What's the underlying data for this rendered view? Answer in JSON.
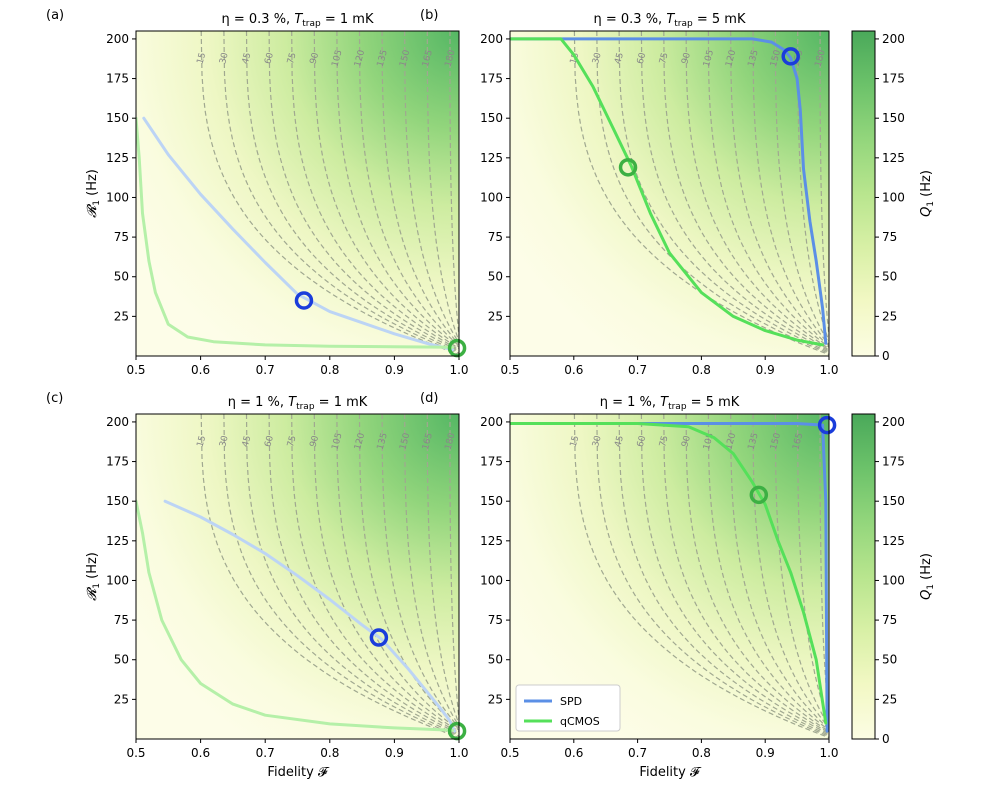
{
  "chart_data": {
    "type": "contour",
    "colorbar": {
      "label_main": "Q",
      "label_sub": "1",
      "label_unit": " (Hz)",
      "ticks": [
        0,
        25,
        50,
        75,
        100,
        125,
        150,
        175,
        200
      ],
      "range": [
        0,
        205
      ],
      "colors": [
        "#fcfde4",
        "#f2f8c4",
        "#d8f0a6",
        "#b8e58e",
        "#93d67c",
        "#6cc26a",
        "#4aa95a"
      ]
    },
    "x_range": [
      0.5,
      1.0
    ],
    "y_range": [
      0,
      205
    ],
    "x_ticks": [
      "0.5",
      "0.6",
      "0.7",
      "0.8",
      "0.9",
      "1.0"
    ],
    "y_ticks": [
      "25",
      "50",
      "75",
      "100",
      "125",
      "150",
      "175",
      "200"
    ],
    "xlabel": "Fidelity 𝓕",
    "ylabel_main": "𝓡",
    "ylabel_sub": "1",
    "ylabel_unit": " (Hz)",
    "contour_levels": [
      15,
      30,
      45,
      60,
      75,
      90,
      105,
      120,
      135,
      150,
      165,
      180
    ],
    "legend": [
      {
        "label": "SPD",
        "color": "#5b8fe6"
      },
      {
        "label": "qCMOS",
        "color": "#55e05a"
      }
    ],
    "panels": [
      {
        "label": "(a)",
        "title": "η = 0.3 %, T_trap = 1 mK",
        "title_eta": "η = 0.3 %, ",
        "title_T": "T",
        "title_sub": "trap",
        "title_rest": " = 1 mK",
        "contour_label_levels": [
          15,
          30,
          45,
          60,
          75,
          90,
          105,
          120,
          135,
          150,
          165,
          180
        ],
        "series": [
          {
            "name": "SPD",
            "color": "#bcd4f5",
            "x": [
              0.512,
              0.55,
              0.6,
              0.65,
              0.7,
              0.75,
              0.8,
              0.85,
              0.9,
              0.95,
              0.99
            ],
            "y": [
              150,
              127,
              102,
              80,
              59,
              39,
              28,
              21,
              14,
              8,
              4
            ]
          },
          {
            "name": "qCMOS",
            "color": "#b5f0a8",
            "x": [
              0.5,
              0.505,
              0.51,
              0.52,
              0.53,
              0.55,
              0.58,
              0.62,
              0.7,
              0.8,
              0.9,
              0.99
            ],
            "y": [
              150,
              125,
              90,
              60,
              40,
              20,
              12,
              9,
              7,
              6.2,
              5.8,
              5.5
            ]
          }
        ],
        "markers": [
          {
            "name": "SPD",
            "x": 0.76,
            "y": 35,
            "color": "#1a3ddb"
          },
          {
            "name": "qCMOS",
            "x": 0.997,
            "y": 5,
            "color": "#3cb043"
          }
        ]
      },
      {
        "label": "(b)",
        "title": "η = 0.3 %, T_trap = 5 mK",
        "title_eta": "η = 0.3 %, ",
        "title_T": "T",
        "title_sub": "trap",
        "title_rest": " = 5 mK",
        "contour_label_levels": [
          15,
          30,
          45,
          60,
          75,
          90,
          105,
          120,
          135,
          150,
          165,
          180
        ],
        "series": [
          {
            "name": "SPD",
            "color": "#5b8fe6",
            "x": [
              0.5,
              0.88,
              0.91,
              0.93,
              0.94,
              0.95,
              0.955,
              0.96,
              0.97,
              0.98,
              0.99,
              0.995
            ],
            "y": [
              200,
              200,
              198,
              193,
              188,
              175,
              155,
              118,
              85,
              60,
              30,
              8
            ]
          },
          {
            "name": "qCMOS",
            "color": "#55e05a",
            "x": [
              0.5,
              0.58,
              0.6,
              0.63,
              0.66,
              0.69,
              0.72,
              0.75,
              0.8,
              0.85,
              0.9,
              0.95,
              0.99
            ],
            "y": [
              200,
              200,
              190,
              170,
              145,
              120,
              90,
              65,
              40,
              25,
              16,
              10,
              7
            ]
          }
        ],
        "markers": [
          {
            "name": "SPD",
            "x": 0.94,
            "y": 189,
            "color": "#1a3ddb"
          },
          {
            "name": "qCMOS",
            "x": 0.685,
            "y": 119,
            "color": "#3cb043"
          }
        ]
      },
      {
        "label": "(c)",
        "title": "η = 1 %, T_trap = 1 mK",
        "title_eta": "η = 1 %, ",
        "title_T": "T",
        "title_sub": "trap",
        "title_rest": " = 1 mK",
        "contour_label_levels": [
          15,
          30,
          45,
          60,
          75,
          90,
          105,
          120,
          135,
          150,
          165,
          180
        ],
        "series": [
          {
            "name": "SPD",
            "color": "#bcd4f5",
            "x": [
              0.545,
              0.6,
              0.65,
              0.7,
              0.75,
              0.8,
              0.85,
              0.88,
              0.92,
              0.95,
              0.97,
              0.985,
              0.993
            ],
            "y": [
              150,
              140,
              129,
              117,
              103,
              88,
              72,
              63,
              45,
              30,
              20,
              12,
              5
            ]
          },
          {
            "name": "qCMOS",
            "color": "#b5f0a8",
            "x": [
              0.5,
              0.51,
              0.52,
              0.54,
              0.57,
              0.6,
              0.65,
              0.7,
              0.8,
              0.9,
              0.99
            ],
            "y": [
              150,
              130,
              105,
              75,
              50,
              35,
              22,
              15,
              9.5,
              7,
              5.5
            ]
          }
        ],
        "markers": [
          {
            "name": "SPD",
            "x": 0.876,
            "y": 64,
            "color": "#1a3ddb"
          },
          {
            "name": "qCMOS",
            "x": 0.997,
            "y": 5,
            "color": "#3cb043"
          }
        ]
      },
      {
        "label": "(d)",
        "title": "η = 1 %, T_trap = 5 mK",
        "title_eta": "η = 1 %, ",
        "title_T": "T",
        "title_sub": "trap",
        "title_rest": " = 5 mK",
        "contour_label_levels": [
          15,
          30,
          45,
          60,
          75,
          90,
          105,
          120,
          135,
          150,
          165
        ],
        "series": [
          {
            "name": "SPD",
            "color": "#5b8fe6",
            "x": [
              0.545,
              0.75,
              0.85,
              0.95,
              0.99,
              0.995,
              0.997
            ],
            "y": [
              199,
              199,
              199,
              199,
              198,
              150,
              5
            ]
          },
          {
            "name": "qCMOS",
            "color": "#55e05a",
            "x": [
              0.5,
              0.7,
              0.78,
              0.82,
              0.85,
              0.88,
              0.9,
              0.92,
              0.94,
              0.96,
              0.98,
              0.995
            ],
            "y": [
              199,
              199,
              197,
              190,
              180,
              162,
              148,
              125,
              105,
              80,
              50,
              10
            ]
          }
        ],
        "markers": [
          {
            "name": "SPD",
            "x": 0.997,
            "y": 198,
            "color": "#1a3ddb"
          },
          {
            "name": "qCMOS",
            "x": 0.89,
            "y": 154,
            "color": "#3cb043"
          }
        ]
      }
    ]
  }
}
